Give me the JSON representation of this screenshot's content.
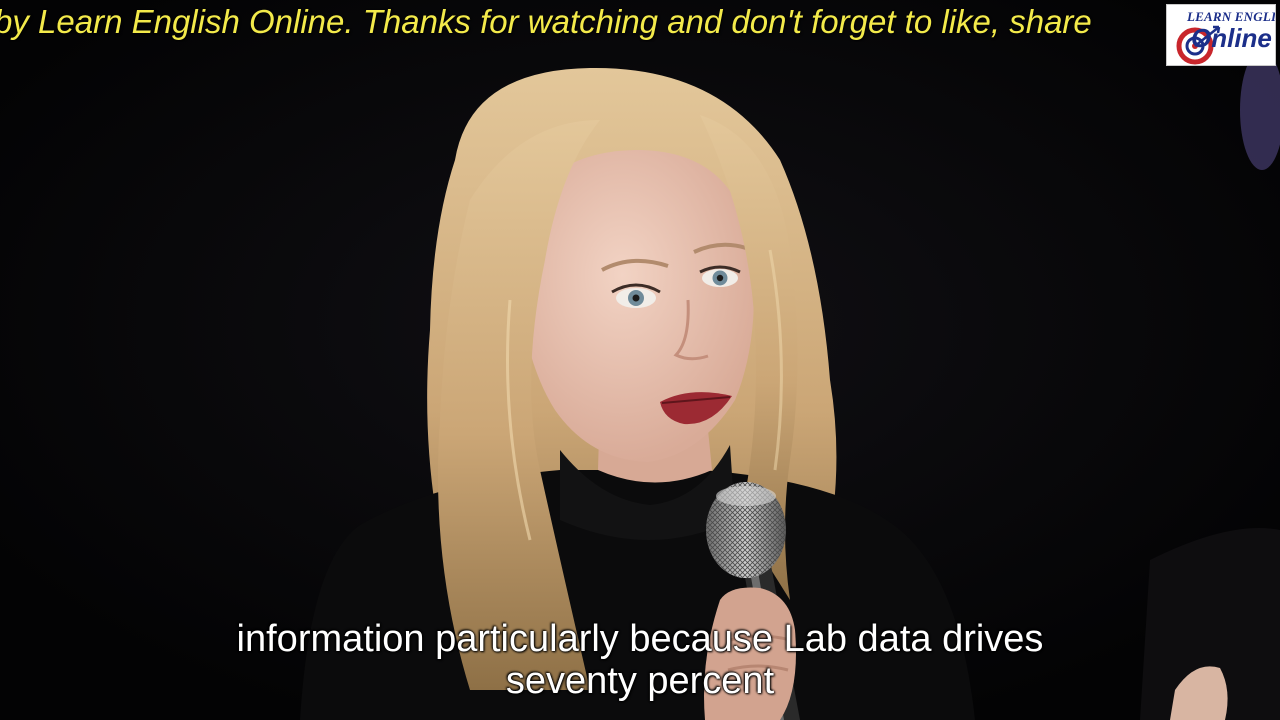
{
  "video": {
    "ticker_text": "by Learn English Online. Thanks for watching and don't forget to like, share",
    "logo": {
      "line1": "LEARN ENGLISH",
      "line2": "Online"
    },
    "subtitles": [
      "information particularly because Lab data drives",
      "seventy percent"
    ]
  }
}
